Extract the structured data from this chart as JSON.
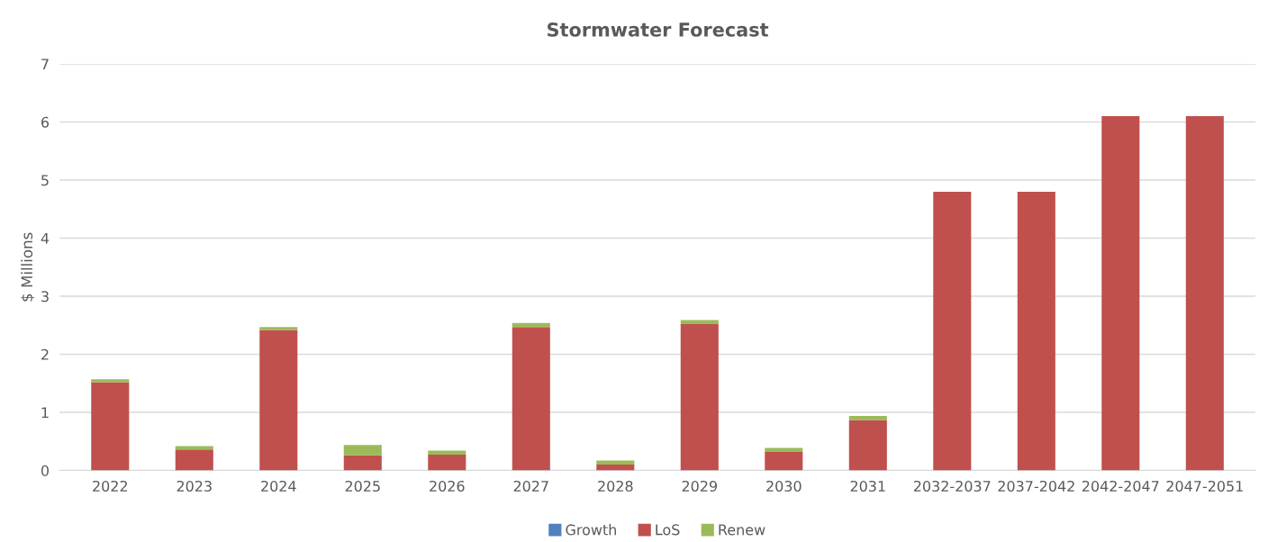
{
  "chart_data": {
    "type": "bar",
    "title": "Stormwater Forecast",
    "ylabel": "$ Millions",
    "stacked": true,
    "categories": [
      "2022",
      "2023",
      "2024",
      "2025",
      "2026",
      "2027",
      "2028",
      "2029",
      "2030",
      "2031",
      "2032-2037",
      "2037-2042",
      "2042-2047",
      "2047-2051"
    ],
    "series": [
      {
        "name": "Growth",
        "color": "#4f81bd",
        "values": [
          0,
          0,
          0,
          0,
          0,
          0,
          0,
          0,
          0,
          0,
          0,
          0,
          0,
          0
        ]
      },
      {
        "name": "LoS",
        "color": "#c0504d",
        "values": [
          1.52,
          0.36,
          2.42,
          0.26,
          0.27,
          2.47,
          0.1,
          2.52,
          0.32,
          0.87,
          4.8,
          4.8,
          6.1,
          6.1
        ]
      },
      {
        "name": "Renew",
        "color": "#9bbb59",
        "values": [
          0.05,
          0.06,
          0.05,
          0.18,
          0.07,
          0.07,
          0.07,
          0.07,
          0.07,
          0.07,
          0,
          0,
          0,
          0
        ]
      }
    ],
    "ylim": [
      0,
      7
    ],
    "yticks": [
      0,
      1,
      2,
      3,
      4,
      5,
      6,
      7
    ],
    "grid": "y",
    "legend": "bottom"
  }
}
